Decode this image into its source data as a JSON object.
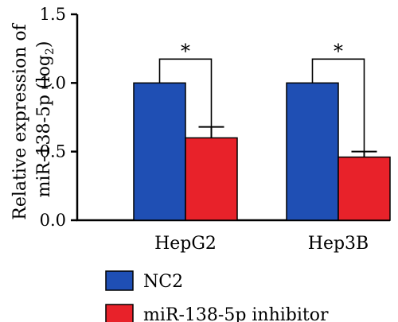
{
  "chart_data": {
    "type": "bar",
    "categories": [
      "HepG2",
      "Hep3B"
    ],
    "series": [
      {
        "name": "NC2",
        "values": [
          1.0,
          1.0
        ],
        "errors": [
          0,
          0
        ],
        "color": "#1f4fb4"
      },
      {
        "name": "miR-138-5p inhibitor",
        "values": [
          0.6,
          0.46
        ],
        "errors": [
          0.08,
          0.04
        ],
        "color": "#e8222a"
      }
    ],
    "ylabel_line1": "Relative expression of",
    "ylabel_line2": "miR-138-5p (log",
    "ylabel_sub": "2",
    "ylabel_close": ")",
    "ylim": [
      0,
      1.5
    ],
    "yticks": [
      0.0,
      0.5,
      1.0,
      1.5
    ],
    "ytick_labels": [
      "0.0",
      "0.5",
      "1.0",
      "1.5"
    ],
    "significance": [
      "*",
      "*"
    ],
    "legend_position": "bottom-left"
  }
}
